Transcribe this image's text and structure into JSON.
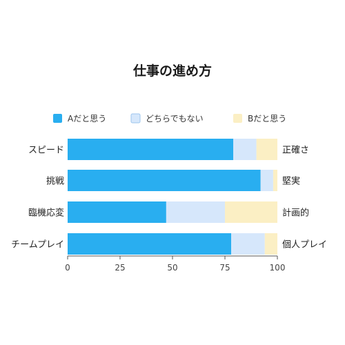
{
  "chart_data": {
    "type": "bar",
    "orientation": "horizontal",
    "stacked": true,
    "title": "仕事の進め方",
    "categories": [
      "スピード",
      "挑戦",
      "臨機応変",
      "チームプレイ"
    ],
    "right_labels": [
      "正確さ",
      "堅実",
      "計画的",
      "個人プレイ"
    ],
    "series": [
      {
        "name": "Aだと思う",
        "color": "#29aef0",
        "values": [
          79,
          92,
          47,
          78
        ]
      },
      {
        "name": "どちらでもない",
        "color": "#d6e7fb",
        "values": [
          11,
          6,
          28,
          16
        ]
      },
      {
        "name": "Bだと思う",
        "color": "#fbefc4",
        "values": [
          10,
          2,
          25,
          6
        ]
      }
    ],
    "xlim": [
      0,
      100
    ],
    "xticks": [
      0,
      25,
      50,
      75,
      100
    ],
    "legend_position": "top",
    "grid": false
  }
}
